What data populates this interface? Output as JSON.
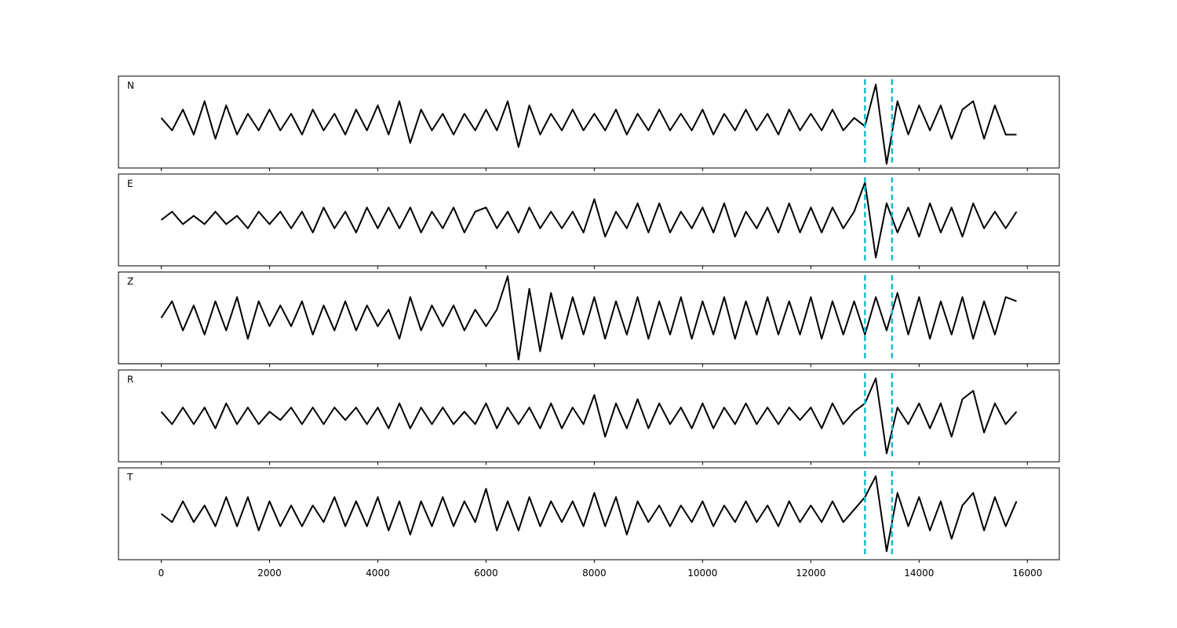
{
  "chart_data": [
    {
      "type": "line",
      "label": "N",
      "color": "#000000",
      "vlines": [
        13000,
        13500
      ],
      "vline_color": "#17becf",
      "xlim": [
        -790,
        16590
      ],
      "ylim": [
        -1.1,
        1.1
      ],
      "xticks": [
        0,
        2000,
        4000,
        6000,
        8000,
        10000,
        12000,
        14000,
        16000
      ],
      "x": [
        0,
        200,
        400,
        600,
        800,
        1000,
        1200,
        1400,
        1600,
        1800,
        2000,
        2200,
        2400,
        2600,
        2800,
        3000,
        3200,
        3400,
        3600,
        3800,
        4000,
        4200,
        4400,
        4600,
        4800,
        5000,
        5200,
        5400,
        5600,
        5800,
        6000,
        6200,
        6400,
        6600,
        6800,
        7000,
        7200,
        7400,
        7600,
        7800,
        8000,
        8200,
        8400,
        8600,
        8800,
        9000,
        9200,
        9400,
        9600,
        9800,
        10000,
        10200,
        10400,
        10600,
        10800,
        11000,
        11200,
        11400,
        11600,
        11800,
        12000,
        12200,
        12400,
        12600,
        12800,
        13000,
        13200,
        13400,
        13600,
        13800,
        14000,
        14200,
        14400,
        14600,
        14800,
        15000,
        15200,
        15400,
        15600,
        15800
      ],
      "values": [
        0.1,
        -0.2,
        0.3,
        -0.3,
        0.5,
        -0.4,
        0.4,
        -0.3,
        0.2,
        -0.2,
        0.3,
        -0.2,
        0.2,
        -0.3,
        0.3,
        -0.2,
        0.2,
        -0.3,
        0.3,
        -0.2,
        0.4,
        -0.3,
        0.5,
        -0.5,
        0.3,
        -0.2,
        0.2,
        -0.3,
        0.2,
        -0.2,
        0.3,
        -0.2,
        0.5,
        -0.6,
        0.4,
        -0.3,
        0.2,
        -0.2,
        0.3,
        -0.2,
        0.2,
        -0.2,
        0.3,
        -0.3,
        0.2,
        -0.2,
        0.3,
        -0.2,
        0.2,
        -0.2,
        0.3,
        -0.3,
        0.2,
        -0.2,
        0.3,
        -0.2,
        0.2,
        -0.3,
        0.3,
        -0.2,
        0.2,
        -0.2,
        0.3,
        -0.2,
        0.1,
        -0.1,
        0.9,
        -1.0,
        0.5,
        -0.3,
        0.4,
        -0.2,
        0.4,
        -0.4,
        0.3,
        0.5,
        -0.4,
        0.4,
        -0.3,
        -0.3
      ]
    },
    {
      "type": "line",
      "label": "E",
      "color": "#000000",
      "vlines": [
        13000,
        13500
      ],
      "vline_color": "#17becf",
      "xlim": [
        -790,
        16590
      ],
      "ylim": [
        -1.1,
        1.1
      ],
      "xticks": [
        0,
        2000,
        4000,
        6000,
        8000,
        10000,
        12000,
        14000,
        16000
      ],
      "x": [
        0,
        200,
        400,
        600,
        800,
        1000,
        1200,
        1400,
        1600,
        1800,
        2000,
        2200,
        2400,
        2600,
        2800,
        3000,
        3200,
        3400,
        3600,
        3800,
        4000,
        4200,
        4400,
        4600,
        4800,
        5000,
        5200,
        5400,
        5600,
        5800,
        6000,
        6200,
        6400,
        6600,
        6800,
        7000,
        7200,
        7400,
        7600,
        7800,
        8000,
        8200,
        8400,
        8600,
        8800,
        9000,
        9200,
        9400,
        9600,
        9800,
        10000,
        10200,
        10400,
        10600,
        10800,
        11000,
        11200,
        11400,
        11600,
        11800,
        12000,
        12200,
        12400,
        12600,
        12800,
        13000,
        13200,
        13400,
        13600,
        13800,
        14000,
        14200,
        14400,
        14600,
        14800,
        15000,
        15200,
        15400,
        15600,
        15800
      ],
      "values": [
        0.0,
        0.2,
        -0.1,
        0.1,
        -0.1,
        0.2,
        -0.1,
        0.1,
        -0.2,
        0.2,
        -0.1,
        0.2,
        -0.2,
        0.2,
        -0.3,
        0.3,
        -0.2,
        0.2,
        -0.3,
        0.3,
        -0.2,
        0.3,
        -0.2,
        0.3,
        -0.3,
        0.2,
        -0.2,
        0.3,
        -0.3,
        0.2,
        0.3,
        -0.2,
        0.2,
        -0.3,
        0.3,
        -0.2,
        0.2,
        -0.2,
        0.2,
        -0.3,
        0.5,
        -0.4,
        0.2,
        -0.2,
        0.4,
        -0.3,
        0.4,
        -0.3,
        0.2,
        -0.2,
        0.3,
        -0.3,
        0.4,
        -0.4,
        0.2,
        -0.2,
        0.3,
        -0.3,
        0.4,
        -0.3,
        0.3,
        -0.3,
        0.3,
        -0.2,
        0.2,
        0.9,
        -0.9,
        0.4,
        -0.3,
        0.3,
        -0.4,
        0.4,
        -0.3,
        0.3,
        -0.4,
        0.4,
        -0.2,
        0.2,
        -0.2,
        0.2
      ]
    },
    {
      "type": "line",
      "label": "Z",
      "color": "#000000",
      "vlines": [
        13000,
        13500
      ],
      "vline_color": "#17becf",
      "xlim": [
        -790,
        16590
      ],
      "ylim": [
        -1.1,
        1.1
      ],
      "xticks": [
        0,
        2000,
        4000,
        6000,
        8000,
        10000,
        12000,
        14000,
        16000
      ],
      "x": [
        0,
        200,
        400,
        600,
        800,
        1000,
        1200,
        1400,
        1600,
        1800,
        2000,
        2200,
        2400,
        2600,
        2800,
        3000,
        3200,
        3400,
        3600,
        3800,
        4000,
        4200,
        4400,
        4600,
        4800,
        5000,
        5200,
        5400,
        5600,
        5800,
        6000,
        6200,
        6400,
        6600,
        6800,
        7000,
        7200,
        7400,
        7600,
        7800,
        8000,
        8200,
        8400,
        8600,
        8800,
        9000,
        9200,
        9400,
        9600,
        9800,
        10000,
        10200,
        10400,
        10600,
        10800,
        11000,
        11200,
        11400,
        11600,
        11800,
        12000,
        12200,
        12400,
        12600,
        12800,
        13000,
        13200,
        13400,
        13600,
        13800,
        14000,
        14200,
        14400,
        14600,
        14800,
        15000,
        15200,
        15400,
        15600,
        15800
      ],
      "values": [
        0.0,
        0.4,
        -0.3,
        0.3,
        -0.4,
        0.4,
        -0.3,
        0.5,
        -0.5,
        0.4,
        -0.2,
        0.3,
        -0.2,
        0.4,
        -0.4,
        0.3,
        -0.3,
        0.4,
        -0.3,
        0.3,
        -0.2,
        0.2,
        -0.5,
        0.5,
        -0.3,
        0.3,
        -0.2,
        0.3,
        -0.3,
        0.2,
        -0.2,
        0.2,
        1.0,
        -1.0,
        0.7,
        -0.8,
        0.6,
        -0.5,
        0.5,
        -0.4,
        0.5,
        -0.5,
        0.4,
        -0.4,
        0.5,
        -0.5,
        0.4,
        -0.4,
        0.5,
        -0.5,
        0.4,
        -0.4,
        0.5,
        -0.5,
        0.4,
        -0.4,
        0.5,
        -0.4,
        0.4,
        -0.4,
        0.5,
        -0.5,
        0.4,
        -0.4,
        0.4,
        -0.4,
        0.5,
        -0.3,
        0.6,
        -0.4,
        0.5,
        -0.5,
        0.4,
        -0.4,
        0.5,
        -0.5,
        0.4,
        -0.4,
        0.5,
        0.4
      ]
    },
    {
      "type": "line",
      "label": "R",
      "color": "#000000",
      "vlines": [
        13000,
        13500
      ],
      "vline_color": "#17becf",
      "xlim": [
        -790,
        16590
      ],
      "ylim": [
        -1.1,
        1.1
      ],
      "xticks": [
        0,
        2000,
        4000,
        6000,
        8000,
        10000,
        12000,
        14000,
        16000
      ],
      "x": [
        0,
        200,
        400,
        600,
        800,
        1000,
        1200,
        1400,
        1600,
        1800,
        2000,
        2200,
        2400,
        2600,
        2800,
        3000,
        3200,
        3400,
        3600,
        3800,
        4000,
        4200,
        4400,
        4600,
        4800,
        5000,
        5200,
        5400,
        5600,
        5800,
        6000,
        6200,
        6400,
        6600,
        6800,
        7000,
        7200,
        7400,
        7600,
        7800,
        8000,
        8200,
        8400,
        8600,
        8800,
        9000,
        9200,
        9400,
        9600,
        9800,
        10000,
        10200,
        10400,
        10600,
        10800,
        11000,
        11200,
        11400,
        11600,
        11800,
        12000,
        12200,
        12400,
        12600,
        12800,
        13000,
        13200,
        13400,
        13600,
        13800,
        14000,
        14200,
        14400,
        14600,
        14800,
        15000,
        15200,
        15400,
        15600,
        15800
      ],
      "values": [
        0.1,
        -0.2,
        0.2,
        -0.2,
        0.2,
        -0.3,
        0.3,
        -0.2,
        0.2,
        -0.2,
        0.1,
        -0.1,
        0.2,
        -0.2,
        0.2,
        -0.2,
        0.2,
        -0.1,
        0.2,
        -0.2,
        0.2,
        -0.3,
        0.3,
        -0.3,
        0.2,
        -0.2,
        0.2,
        -0.2,
        0.1,
        -0.2,
        0.3,
        -0.3,
        0.2,
        -0.2,
        0.2,
        -0.3,
        0.3,
        -0.3,
        0.2,
        -0.2,
        0.5,
        -0.5,
        0.3,
        -0.3,
        0.4,
        -0.3,
        0.3,
        -0.2,
        0.2,
        -0.3,
        0.3,
        -0.3,
        0.2,
        -0.2,
        0.3,
        -0.2,
        0.2,
        -0.2,
        0.2,
        -0.1,
        0.2,
        -0.3,
        0.3,
        -0.2,
        0.1,
        0.3,
        0.9,
        -0.9,
        0.2,
        -0.2,
        0.3,
        -0.3,
        0.3,
        -0.5,
        0.4,
        0.6,
        -0.4,
        0.3,
        -0.2,
        0.1
      ]
    },
    {
      "type": "line",
      "label": "T",
      "color": "#000000",
      "vlines": [
        13000,
        13500
      ],
      "vline_color": "#17becf",
      "xlim": [
        -790,
        16590
      ],
      "ylim": [
        -1.1,
        1.1
      ],
      "xticks": [
        0,
        2000,
        4000,
        6000,
        8000,
        10000,
        12000,
        14000,
        16000
      ],
      "x": [
        0,
        200,
        400,
        600,
        800,
        1000,
        1200,
        1400,
        1600,
        1800,
        2000,
        2200,
        2400,
        2600,
        2800,
        3000,
        3200,
        3400,
        3600,
        3800,
        4000,
        4200,
        4400,
        4600,
        4800,
        5000,
        5200,
        5400,
        5600,
        5800,
        6000,
        6200,
        6400,
        6600,
        6800,
        7000,
        7200,
        7400,
        7600,
        7800,
        8000,
        8200,
        8400,
        8600,
        8800,
        9000,
        9200,
        9400,
        9600,
        9800,
        10000,
        10200,
        10400,
        10600,
        10800,
        11000,
        11200,
        11400,
        11600,
        11800,
        12000,
        12200,
        12400,
        12600,
        12800,
        13000,
        13200,
        13400,
        13600,
        13800,
        14000,
        14200,
        14400,
        14600,
        14800,
        15000,
        15200,
        15400,
        15600,
        15800
      ],
      "values": [
        0.0,
        -0.2,
        0.3,
        -0.2,
        0.2,
        -0.3,
        0.4,
        -0.3,
        0.4,
        -0.4,
        0.3,
        -0.3,
        0.2,
        -0.3,
        0.2,
        -0.2,
        0.4,
        -0.3,
        0.3,
        -0.3,
        0.4,
        -0.4,
        0.3,
        -0.5,
        0.3,
        -0.3,
        0.4,
        -0.3,
        0.3,
        -0.2,
        0.6,
        -0.4,
        0.3,
        -0.4,
        0.4,
        -0.3,
        0.3,
        -0.2,
        0.3,
        -0.3,
        0.5,
        -0.3,
        0.4,
        -0.5,
        0.3,
        -0.2,
        0.2,
        -0.3,
        0.2,
        -0.2,
        0.3,
        -0.3,
        0.2,
        -0.2,
        0.3,
        -0.2,
        0.2,
        -0.3,
        0.3,
        -0.2,
        0.2,
        -0.2,
        0.3,
        -0.2,
        0.1,
        0.4,
        0.9,
        -0.9,
        0.5,
        -0.3,
        0.4,
        -0.4,
        0.3,
        -0.6,
        0.2,
        0.5,
        -0.4,
        0.4,
        -0.3,
        0.3
      ]
    }
  ]
}
